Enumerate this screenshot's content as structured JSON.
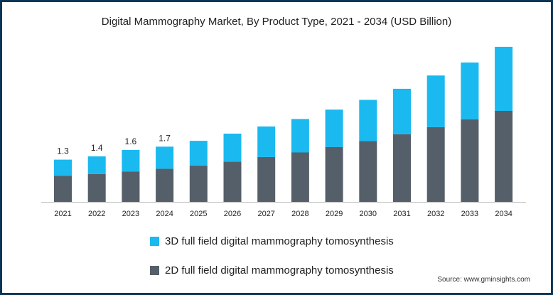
{
  "chart_data": {
    "type": "bar",
    "stacked": true,
    "title": "Digital Mammography Market, By Product Type, 2021 - 2034 (USD Billion)",
    "categories": [
      "2021",
      "2022",
      "2023",
      "2024",
      "2025",
      "2026",
      "2027",
      "2028",
      "2029",
      "2030",
      "2031",
      "2032",
      "2033",
      "2034"
    ],
    "series": [
      {
        "name": "2D full field digital mammography tomosynthesis",
        "color": "#555f69",
        "values": [
          0.8,
          0.86,
          0.93,
          1.02,
          1.12,
          1.24,
          1.38,
          1.52,
          1.69,
          1.87,
          2.08,
          2.3,
          2.54,
          2.8
        ]
      },
      {
        "name": "3D full field digital mammography tomosynthesis",
        "color": "#1ab9f0",
        "values": [
          0.5,
          0.54,
          0.67,
          0.68,
          0.76,
          0.86,
          0.94,
          1.03,
          1.15,
          1.27,
          1.4,
          1.59,
          1.75,
          1.97
        ]
      }
    ],
    "data_labels": [
      "1.3",
      "1.4",
      "1.6",
      "1.7",
      "",
      "",
      "",
      "",
      "",
      "",
      "",
      "",
      "",
      ""
    ],
    "ylim": [
      0,
      4.9
    ],
    "y_axis_visible": false,
    "grid": false,
    "legend_position": "bottom-center"
  },
  "legend": {
    "items": [
      {
        "label": "3D full field digital mammography tomosynthesis",
        "color": "#1ab9f0"
      },
      {
        "label": "2D full field digital mammography tomosynthesis",
        "color": "#555f69"
      }
    ]
  },
  "source_text": "Source: www.gminsights.com"
}
